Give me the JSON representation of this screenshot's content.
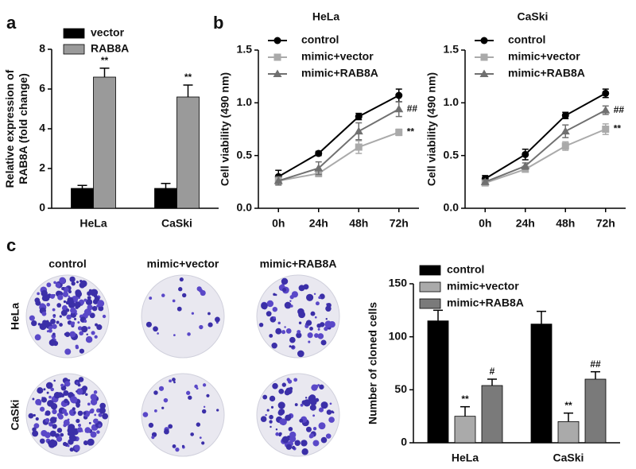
{
  "panel_labels": [
    "a",
    "b",
    "c"
  ],
  "chart_data": [
    {
      "type": "bar",
      "ylabel": [
        "Relative expression of",
        "RAB8A (fold change)"
      ],
      "categories": [
        "HeLa",
        "CaSki"
      ],
      "series": [
        {
          "name": "vector",
          "color": "#000000",
          "values": [
            1.0,
            1.0
          ],
          "errors": [
            0.15,
            0.25
          ]
        },
        {
          "name": "RAB8A",
          "color": "#9a9a9a",
          "values": [
            6.6,
            5.6
          ],
          "errors": [
            0.45,
            0.6
          ],
          "annotations": [
            "**",
            "**"
          ]
        }
      ],
      "ylim": [
        0,
        8
      ],
      "yticks": [
        0,
        2,
        4,
        6,
        8
      ],
      "legend": "top-left"
    },
    {
      "type": "line",
      "title": "HeLa",
      "ylabel": [
        "Cell viability (490 nm)"
      ],
      "categories": [
        "0h",
        "24h",
        "48h",
        "72h"
      ],
      "series": [
        {
          "name": "control",
          "color": "#000000",
          "marker": "circle",
          "values": [
            0.3,
            0.52,
            0.87,
            1.07
          ],
          "errors": [
            0.06,
            0.02,
            0.03,
            0.06
          ]
        },
        {
          "name": "mimic+vector",
          "color": "#aaaaaa",
          "marker": "square",
          "values": [
            0.26,
            0.33,
            0.58,
            0.72
          ],
          "errors": [
            0.03,
            0.03,
            0.06,
            0.03
          ],
          "annotation": "**"
        },
        {
          "name": "mimic+RAB8A",
          "color": "#707070",
          "marker": "triangle",
          "values": [
            0.26,
            0.38,
            0.73,
            0.94
          ],
          "errors": [
            0.04,
            0.06,
            0.08,
            0.07
          ],
          "annotation": "##"
        }
      ],
      "ylim": [
        0,
        1.5
      ],
      "yticks": [
        {
          "value": 0,
          "label": "0.0"
        },
        0.5,
        {
          "value": 1,
          "label": "1.0"
        },
        1.5
      ],
      "legend": "top-left"
    },
    {
      "type": "line",
      "title": "CaSki",
      "ylabel": [
        "Cell viability (490 nm)"
      ],
      "categories": [
        "0h",
        "24h",
        "48h",
        "72h"
      ],
      "series": [
        {
          "name": "control",
          "color": "#000000",
          "marker": "circle",
          "values": [
            0.28,
            0.51,
            0.88,
            1.09
          ],
          "errors": [
            0.03,
            0.05,
            0.03,
            0.04
          ]
        },
        {
          "name": "mimic+vector",
          "color": "#aaaaaa",
          "marker": "square",
          "values": [
            0.24,
            0.37,
            0.59,
            0.75
          ],
          "errors": [
            0.02,
            0.02,
            0.04,
            0.05
          ],
          "annotation": "**"
        },
        {
          "name": "mimic+RAB8A",
          "color": "#707070",
          "marker": "triangle",
          "values": [
            0.25,
            0.4,
            0.73,
            0.93
          ],
          "errors": [
            0.02,
            0.03,
            0.06,
            0.04
          ],
          "annotation": "##"
        }
      ],
      "ylim": [
        0,
        1.5
      ],
      "yticks": [
        {
          "value": 0,
          "label": "0.0"
        },
        0.5,
        {
          "value": 1,
          "label": "1.0"
        },
        1.5
      ],
      "legend": "top-left"
    },
    {
      "type": "bar",
      "ylabel": [
        "Number of cloned cells"
      ],
      "categories": [
        "HeLa",
        "CaSki"
      ],
      "series": [
        {
          "name": "control",
          "color": "#000000",
          "values": [
            115,
            112
          ],
          "errors": [
            10,
            12
          ]
        },
        {
          "name": "mimic+vector",
          "color": "#aaaaaa",
          "values": [
            25,
            20
          ],
          "errors": [
            9,
            8
          ],
          "annotations": [
            "**",
            "**"
          ]
        },
        {
          "name": "mimic+RAB8A",
          "color": "#7a7a7a",
          "values": [
            54,
            60
          ],
          "errors": [
            6,
            7
          ],
          "annotations": [
            "#",
            "##"
          ]
        }
      ],
      "ylim": [
        0,
        150
      ],
      "yticks": [
        0,
        50,
        100,
        150
      ],
      "legend": "top-left"
    }
  ],
  "colony_images": {
    "columns": [
      "control",
      "mimic+vector",
      "mimic+RAB8A"
    ],
    "rows": [
      "HeLa",
      "CaSki"
    ]
  }
}
